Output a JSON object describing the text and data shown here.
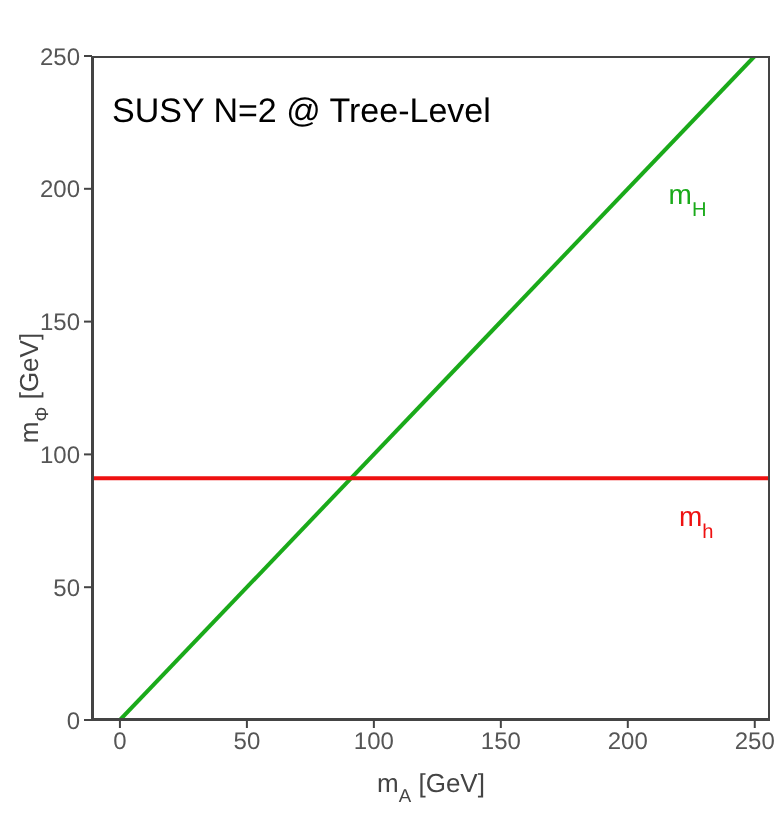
{
  "chart_data": {
    "type": "line",
    "title": "SUSY N=2 @ Tree-Level",
    "xlabel": "m$_{A}$ [GeV]",
    "ylabel": "m$_{Φ}$ [GeV]",
    "series": [
      {
        "name": "m$_{H}$",
        "color": "#1aaa1a",
        "x": [
          0,
          250
        ],
        "values": [
          0,
          250
        ]
      },
      {
        "name": "m$_{h}$",
        "color": "#ee1111",
        "x": [
          -11,
          256
        ],
        "values": [
          91,
          91
        ]
      }
    ],
    "xlim": [
      -11,
      256
    ],
    "ylim": [
      0,
      250
    ],
    "xticks": [
      0,
      50,
      100,
      150,
      200,
      250
    ],
    "yticks": [
      0,
      50,
      100,
      150,
      200,
      250
    ],
    "marker": "none",
    "line_style": "solid"
  }
}
